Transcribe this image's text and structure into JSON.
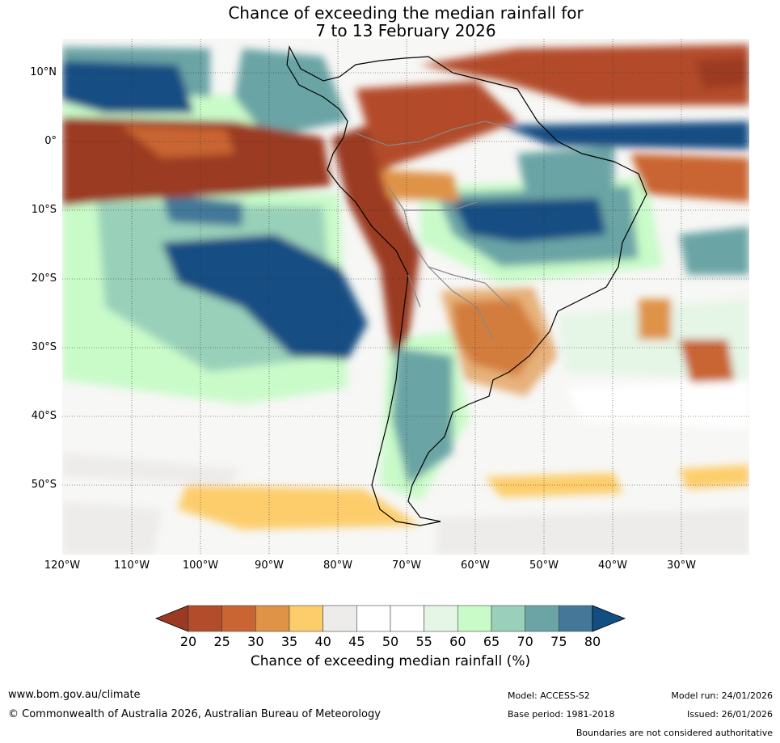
{
  "title": {
    "line1": "Chance of exceeding the median rainfall for",
    "line2": "7 to 13 February 2026"
  },
  "latitude_labels": [
    "10°N",
    "0°",
    "10°S",
    "20°S",
    "30°S",
    "40°S",
    "50°S"
  ],
  "longitude_labels": [
    "120°W",
    "110°W",
    "100°W",
    "90°W",
    "80°W",
    "70°W",
    "60°W",
    "50°W",
    "40°W",
    "30°W"
  ],
  "colorbar": {
    "ticks": [
      "20",
      "25",
      "30",
      "35",
      "40",
      "45",
      "50",
      "55",
      "60",
      "65",
      "70",
      "75",
      "80"
    ],
    "colors": [
      "#9b3a22",
      "#b34c2a",
      "#c96533",
      "#df9346",
      "#fdcd6c",
      "#edecea",
      "#ffffff",
      "#ffffff",
      "#e5f5e6",
      "#c9fbc9",
      "#99d0b9",
      "#6aa4a5",
      "#437898",
      "#134e83"
    ],
    "label": "Chance of exceeding median rainfall (%)"
  },
  "footer": {
    "url": "www.bom.gov.au/climate",
    "copyright": "© Commonwealth of Australia 2026, Australian Bureau of Meteorology",
    "model": "Model: ACCESS-S2",
    "base_period": "Base period: 1981-2018",
    "model_run": "Model run: 24/01/2026",
    "issued": "Issued: 26/01/2026",
    "disclaimer": "Boundaries are not considered authoritative"
  }
}
